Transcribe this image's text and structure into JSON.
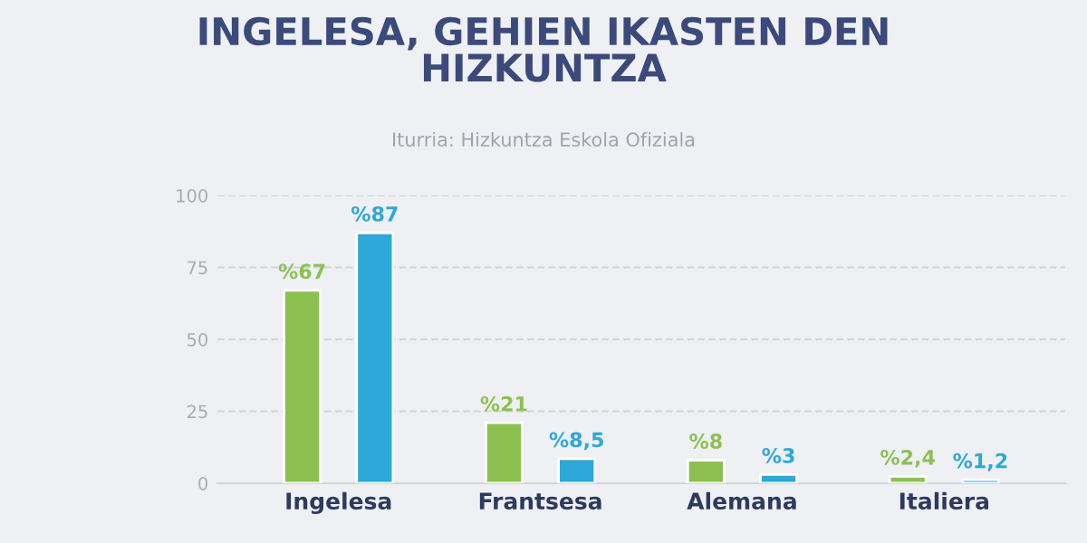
{
  "chart_data": {
    "type": "bar",
    "title": "INGELESA, GEHIEN IKASTEN DEN\nHIZKUNTZA",
    "subtitle": "Iturria: Hizkuntza Eskola Ofiziala",
    "categories": [
      "Ingelesa",
      "Frantsesa",
      "Alemana",
      "Italiera"
    ],
    "series": [
      {
        "color": "#8cc152",
        "values": [
          67,
          21,
          8,
          2.4
        ],
        "value_labels": [
          "%67",
          "%21",
          "%8",
          "%2,4"
        ]
      },
      {
        "color": "#2ea8d8",
        "values": [
          87,
          8.5,
          3,
          1.2
        ],
        "value_labels": [
          "%87",
          "%8,5",
          "%3",
          "%1,2"
        ]
      }
    ],
    "ylim": [
      0,
      100
    ],
    "yticks": [
      0,
      25,
      50,
      75,
      100
    ],
    "grid": "y",
    "legend": false
  }
}
